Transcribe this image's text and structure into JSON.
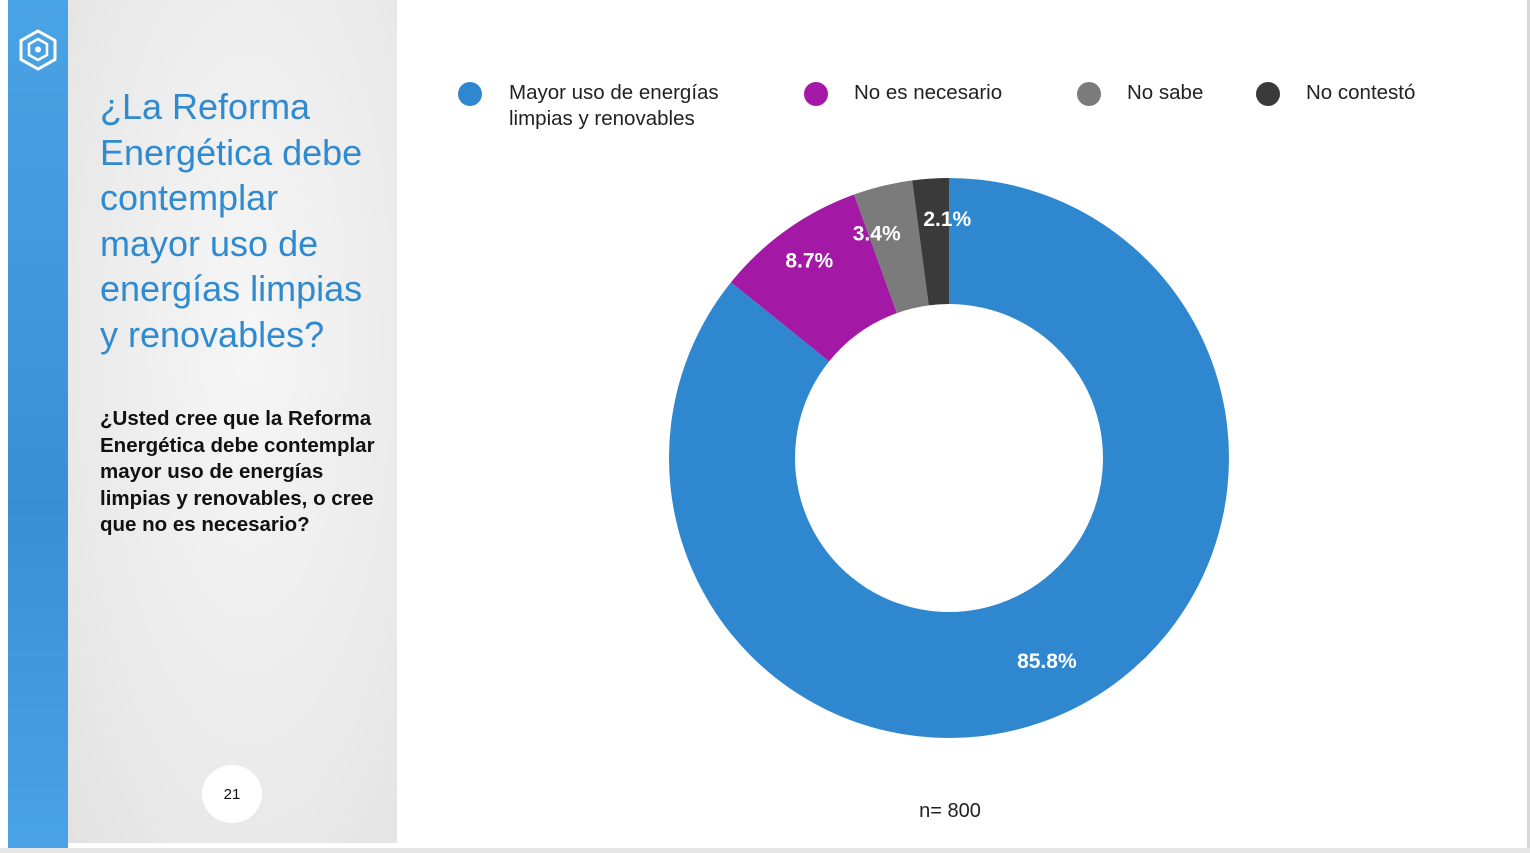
{
  "slide": {
    "title": "¿La Reforma Energética debe contemplar mayor uso de energías limpias y renovables?",
    "question": "¿Usted cree que la Reforma Energética debe contemplar mayor uso de energías limpias y renovables, o cree que no es necesario?",
    "page_number": "21",
    "sample_size": "n= 800",
    "logo_icon": "hexagon-logo-icon"
  },
  "legend": [
    {
      "label": "Mayor uso de energías limpias y renovables",
      "color": "#2f87cf"
    },
    {
      "label": "No es necesario",
      "color": "#a318a5"
    },
    {
      "label": "No sabe",
      "color": "#7b7b7b"
    },
    {
      "label": "No contestó",
      "color": "#3a3a3a"
    }
  ],
  "chart_data": {
    "type": "pie",
    "title": "",
    "categories": [
      "Mayor uso de energías limpias y renovables",
      "No es necesario",
      "No sabe",
      "No contestó"
    ],
    "values": [
      85.8,
      8.7,
      3.4,
      2.1
    ],
    "labels": [
      "85.8%",
      "8.7%",
      "3.4%",
      "2.1%"
    ],
    "colors": [
      "#2f87cf",
      "#a318a5",
      "#7b7b7b",
      "#3a3a3a"
    ],
    "donut": true,
    "direction": "clockwise from top",
    "legend_position": "top"
  }
}
